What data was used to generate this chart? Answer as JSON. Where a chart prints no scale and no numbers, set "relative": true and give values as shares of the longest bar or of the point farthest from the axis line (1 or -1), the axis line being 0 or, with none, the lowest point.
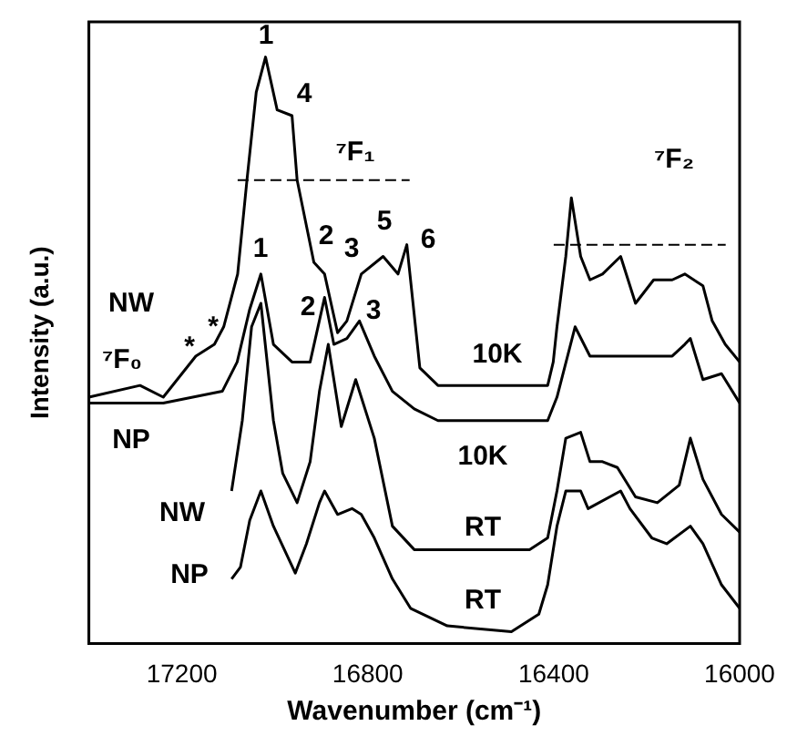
{
  "chart_data": {
    "type": "line",
    "relative": true,
    "marker": "none",
    "xlabel": "Wavenumber (cm⁻¹)",
    "ylabel": "Intensity (a.u.)",
    "xlim": [
      17400,
      16000
    ],
    "xticks": [
      17200,
      16800,
      16400,
      16000
    ],
    "grid": false,
    "legend": false,
    "series": [
      {
        "color": "#000000",
        "x": [
          17400,
          17290,
          17240,
          17170,
          17130,
          17110,
          17080,
          17060,
          17040,
          17020,
          16995,
          16963,
          16952,
          16916,
          16893,
          16865,
          16845,
          16814,
          16767,
          16735,
          16716,
          16688,
          16649,
          16413,
          16401,
          16393,
          16374,
          16362,
          16342,
          16322,
          16295,
          16256,
          16224,
          16185,
          16145,
          16118,
          16079,
          16059,
          16031,
          16000
        ],
        "values": [
          0.42,
          0.44,
          0.42,
          0.49,
          0.51,
          0.54,
          0.63,
          0.79,
          0.94,
          1.0,
          0.91,
          0.9,
          0.79,
          0.65,
          0.63,
          0.53,
          0.55,
          0.63,
          0.66,
          0.63,
          0.68,
          0.47,
          0.44,
          0.44,
          0.48,
          0.54,
          0.66,
          0.76,
          0.66,
          0.62,
          0.63,
          0.66,
          0.58,
          0.62,
          0.62,
          0.63,
          0.61,
          0.55,
          0.51,
          0.48
        ]
      },
      {
        "color": "#000000",
        "x": [
          17400,
          17240,
          17113,
          17081,
          17054,
          17030,
          17003,
          16963,
          16924,
          16893,
          16873,
          16845,
          16818,
          16786,
          16747,
          16700,
          16649,
          16413,
          16393,
          16354,
          16322,
          16256,
          16145,
          16118,
          16106,
          16079,
          16039,
          16000
        ],
        "values": [
          0.41,
          0.41,
          0.43,
          0.48,
          0.57,
          0.63,
          0.51,
          0.48,
          0.48,
          0.59,
          0.51,
          0.52,
          0.55,
          0.49,
          0.43,
          0.4,
          0.38,
          0.38,
          0.42,
          0.54,
          0.49,
          0.49,
          0.49,
          0.51,
          0.52,
          0.45,
          0.46,
          0.41
        ]
      },
      {
        "color": "#000000",
        "x": [
          17093,
          17070,
          17050,
          17030,
          17003,
          16983,
          16952,
          16924,
          16904,
          16885,
          16857,
          16826,
          16786,
          16747,
          16700,
          16649,
          16452,
          16413,
          16393,
          16374,
          16342,
          16322,
          16295,
          16263,
          16224,
          16177,
          16130,
          16106,
          16079,
          16039,
          16000
        ],
        "values": [
          0.26,
          0.38,
          0.54,
          0.58,
          0.38,
          0.29,
          0.24,
          0.31,
          0.43,
          0.51,
          0.37,
          0.45,
          0.35,
          0.2,
          0.16,
          0.16,
          0.16,
          0.18,
          0.26,
          0.35,
          0.36,
          0.31,
          0.31,
          0.3,
          0.25,
          0.24,
          0.27,
          0.35,
          0.28,
          0.22,
          0.19
        ]
      },
      {
        "color": "#000000",
        "x": [
          17093,
          17074,
          17054,
          17030,
          17003,
          16956,
          16932,
          16904,
          16893,
          16865,
          16834,
          16814,
          16786,
          16747,
          16708,
          16629,
          16491,
          16432,
          16413,
          16393,
          16374,
          16342,
          16326,
          16256,
          16236,
          16189,
          16157,
          16106,
          16079,
          16039,
          16000
        ],
        "values": [
          0.11,
          0.13,
          0.21,
          0.26,
          0.2,
          0.12,
          0.17,
          0.24,
          0.26,
          0.22,
          0.23,
          0.22,
          0.18,
          0.11,
          0.06,
          0.03,
          0.02,
          0.05,
          0.1,
          0.2,
          0.26,
          0.26,
          0.23,
          0.26,
          0.23,
          0.18,
          0.17,
          0.2,
          0.17,
          0.1,
          0.06
        ]
      },
      {
        "color": "#000000",
        "line_style": "dashed",
        "x": [
          17080,
          16710
        ],
        "values": [
          0.79,
          0.79
        ]
      },
      {
        "color": "#000000",
        "line_style": "dashed",
        "x": [
          16400,
          16030
        ],
        "values": [
          0.68,
          0.68
        ]
      }
    ],
    "annotations": [
      "1",
      "4",
      "⁷F₁",
      "2",
      "3",
      "5",
      "6",
      "⁷F₂",
      "1",
      "2",
      "3",
      "NW",
      "⁷F₀",
      "*",
      "*",
      "NP",
      "NW",
      "NP",
      "10K",
      "10K",
      "RT",
      "RT"
    ]
  }
}
